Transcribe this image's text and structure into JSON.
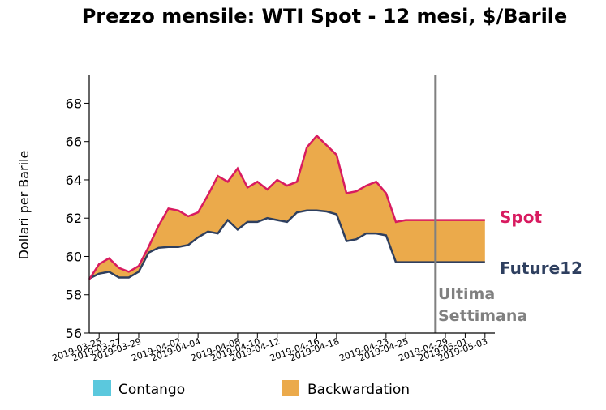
{
  "chart_data": {
    "type": "area",
    "title": "Prezzo mensile: WTI Spot - 12 mesi, $/Barile",
    "ylabel": "Dollari per Barile",
    "xlabel": "",
    "ylim": [
      56,
      69.5
    ],
    "yticks": [
      56,
      58,
      60,
      62,
      64,
      66,
      68
    ],
    "xlim": [
      "2019-03-24",
      "2019-05-04"
    ],
    "xticks": [
      "2019-03-25",
      "2019-03-27",
      "2019-03-29",
      "2019-04-02",
      "2019-04-04",
      "2019-04-08",
      "2019-04-10",
      "2019-04-12",
      "2019-04-16",
      "2019-04-18",
      "2019-04-23",
      "2019-04-25",
      "2019-04-29",
      "2019-05-01",
      "2019-05-03"
    ],
    "grid": false,
    "x": [
      "2019-03-24",
      "2019-03-25",
      "2019-03-26",
      "2019-03-27",
      "2019-03-28",
      "2019-03-29",
      "2019-03-30",
      "2019-03-31",
      "2019-04-01",
      "2019-04-02",
      "2019-04-03",
      "2019-04-04",
      "2019-04-05",
      "2019-04-06",
      "2019-04-07",
      "2019-04-08",
      "2019-04-09",
      "2019-04-10",
      "2019-04-11",
      "2019-04-12",
      "2019-04-13",
      "2019-04-14",
      "2019-04-15",
      "2019-04-16",
      "2019-04-17",
      "2019-04-18",
      "2019-04-19",
      "2019-04-20",
      "2019-04-21",
      "2019-04-22",
      "2019-04-23",
      "2019-04-24",
      "2019-04-25",
      "2019-04-26",
      "2019-04-27",
      "2019-04-28",
      "2019-04-29",
      "2019-04-30",
      "2019-05-01",
      "2019-05-02",
      "2019-05-03"
    ],
    "series": [
      {
        "name": "Spot",
        "color": "#d81b60",
        "values": [
          58.8,
          59.6,
          59.9,
          59.4,
          59.2,
          59.5,
          60.5,
          61.6,
          62.5,
          62.4,
          62.1,
          62.3,
          63.2,
          64.2,
          63.9,
          64.6,
          63.6,
          63.9,
          63.5,
          64.0,
          63.7,
          63.9,
          65.7,
          66.3,
          65.8,
          65.3,
          63.3,
          63.4,
          63.7,
          63.9,
          63.3,
          61.8,
          61.9,
          61.9,
          61.9,
          61.9,
          61.9,
          61.9,
          61.9,
          61.9,
          61.9
        ]
      },
      {
        "name": "Future12",
        "color": "#2e3f5f",
        "values": [
          58.85,
          59.1,
          59.2,
          58.9,
          58.9,
          59.2,
          60.2,
          60.45,
          60.5,
          60.5,
          60.6,
          61.0,
          61.3,
          61.2,
          61.9,
          61.4,
          61.8,
          61.8,
          62.0,
          61.9,
          61.8,
          62.3,
          62.4,
          62.4,
          62.35,
          62.2,
          60.8,
          60.9,
          61.2,
          61.2,
          61.1,
          59.7,
          59.7,
          59.7,
          59.7,
          59.7,
          59.7,
          59.7,
          59.7,
          59.7,
          59.7
        ]
      }
    ],
    "fill_colors": {
      "contango": "#5bc8dd",
      "backwardation": "#ebaa4b"
    },
    "vline": {
      "x": "2019-04-28",
      "color": "#808080"
    },
    "annotations": {
      "spot_label": "Spot",
      "future_label": "Future12",
      "last_week_line1": "Ultima",
      "last_week_line2": "Settimana"
    },
    "legend": {
      "placement": "bottom",
      "items": [
        {
          "label": "Contango",
          "color": "#5bc8dd"
        },
        {
          "label": "Backwardation",
          "color": "#ebaa4b"
        }
      ]
    }
  }
}
